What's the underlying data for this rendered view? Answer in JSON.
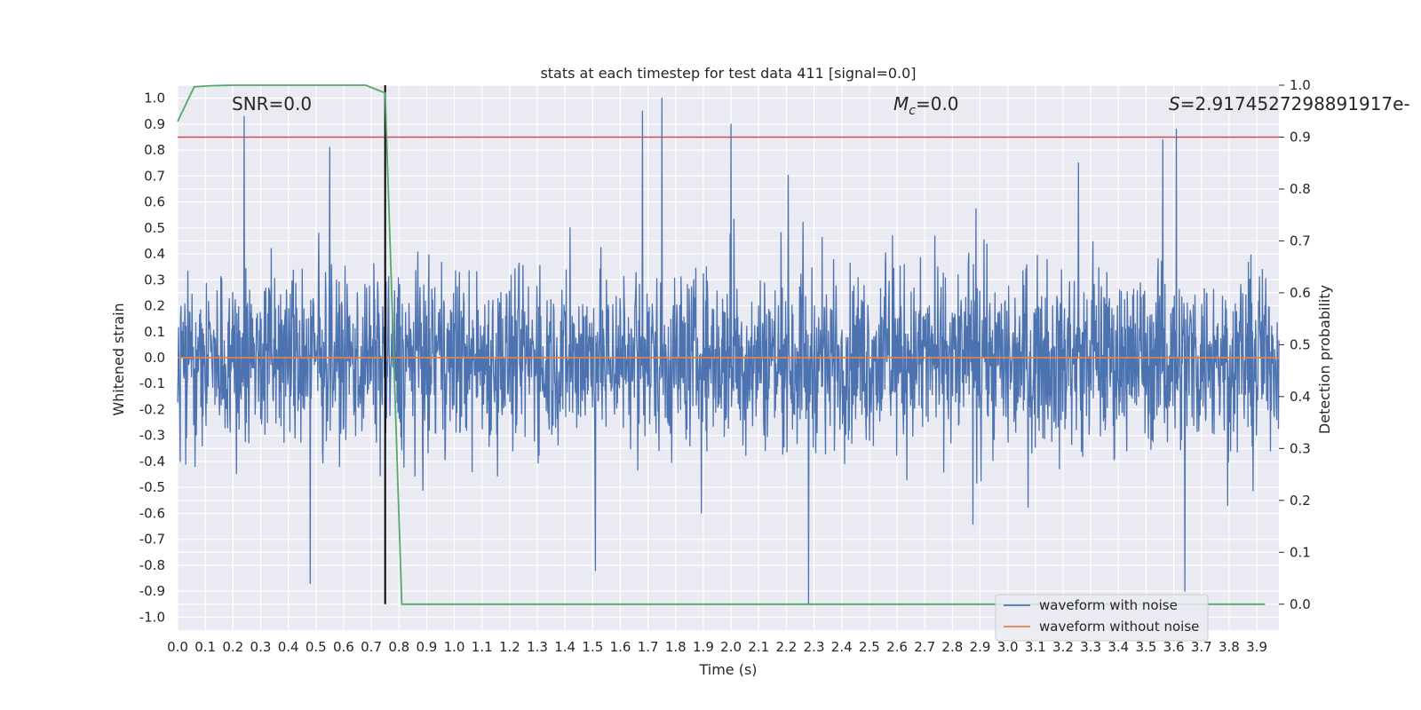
{
  "chart_data": {
    "type": "line",
    "title": "stats at each timestep for test data 411 [signal=0.0]",
    "xlabel": "Time (s)",
    "ylabel": "Whitened strain",
    "ylabel_right": "Detection probability",
    "xlim": [
      0.0,
      3.98
    ],
    "ylim": [
      -1.05,
      1.05
    ],
    "ylim_right": [
      -0.05,
      1.0
    ],
    "x_ticks": [
      "0.0",
      "0.1",
      "0.2",
      "0.3",
      "0.4",
      "0.5",
      "0.6",
      "0.7",
      "0.8",
      "0.9",
      "1.0",
      "1.1",
      "1.2",
      "1.3",
      "1.4",
      "1.5",
      "1.6",
      "1.7",
      "1.8",
      "1.9",
      "2.0",
      "2.1",
      "2.2",
      "2.3",
      "2.4",
      "2.5",
      "2.6",
      "2.7",
      "2.8",
      "2.9",
      "3.0",
      "3.1",
      "3.2",
      "3.3",
      "3.4",
      "3.5",
      "3.6",
      "3.7",
      "3.8",
      "3.9"
    ],
    "y_ticks": [
      "1.0",
      "0.9",
      "0.8",
      "0.7",
      "0.6",
      "0.5",
      "0.4",
      "0.3",
      "0.2",
      "0.1",
      "0.0",
      "-0.1",
      "-0.2",
      "-0.3",
      "-0.4",
      "-0.5",
      "-0.6",
      "-0.7",
      "-0.8",
      "-0.9",
      "-1.0"
    ],
    "y_ticks_right": [
      "1.0",
      "0.9",
      "0.8",
      "0.7",
      "0.6",
      "0.5",
      "0.4",
      "0.3",
      "0.2",
      "0.1",
      "0.0"
    ],
    "grid": true,
    "legend_position": "lower right",
    "annotations": {
      "snr": "SNR=0.0",
      "mc_symbol": "M",
      "mc_sub": "c",
      "mc_value": "=0.0",
      "s_symbol": "S",
      "s_value": "=2.9174527298891917e-"
    },
    "series": [
      {
        "name": "waveform with noise",
        "color": "#4c72b0",
        "axis": "left",
        "description": "dense whitened noise trace, mostly within ±0.45 with spikes reaching about ±1.0",
        "peaks": [
          {
            "x": 0.24,
            "y": 0.93
          },
          {
            "x": 0.55,
            "y": 0.81
          },
          {
            "x": 1.68,
            "y": 0.95
          },
          {
            "x": 1.75,
            "y": 1.0
          },
          {
            "x": 2.0,
            "y": 0.9
          },
          {
            "x": 3.56,
            "y": 0.84
          },
          {
            "x": 3.61,
            "y": 0.88
          },
          {
            "x": 0.48,
            "y": -0.87
          },
          {
            "x": 1.51,
            "y": -0.82
          },
          {
            "x": 2.28,
            "y": -0.95
          },
          {
            "x": 3.64,
            "y": -0.9
          }
        ]
      },
      {
        "name": "waveform without noise",
        "color": "#dd8452",
        "axis": "left",
        "x": [
          0.0,
          3.98
        ],
        "y": [
          0.0,
          0.0
        ]
      },
      {
        "name": "Detection probability",
        "color": "#55a868",
        "axis": "right",
        "x": [
          0.0,
          0.06,
          0.12,
          0.2,
          0.3,
          0.4,
          0.5,
          0.6,
          0.68,
          0.75,
          0.81,
          0.9,
          1.5,
          2.0,
          2.5,
          3.0,
          3.5,
          3.93
        ],
        "y": [
          0.93,
          0.997,
          0.999,
          1.0,
          1.0,
          1.0,
          1.0,
          1.0,
          1.0,
          0.985,
          0.0,
          0.0,
          0.0,
          0.0,
          0.0,
          0.0,
          0.0,
          0.0
        ]
      }
    ],
    "reference_lines": [
      {
        "orientation": "horizontal",
        "axis": "right",
        "value": 0.9,
        "color": "#c44e52"
      },
      {
        "orientation": "vertical",
        "value": 0.75,
        "color": "#000000"
      }
    ]
  }
}
